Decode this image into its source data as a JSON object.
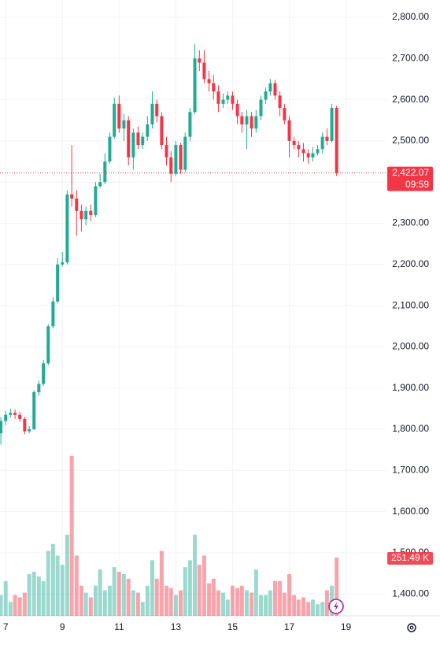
{
  "chart_data": {
    "type": "candlestick",
    "x": [
      6.83,
      7,
      7.17,
      7.33,
      7.5,
      7.67,
      7.83,
      8,
      8.17,
      8.33,
      8.5,
      8.67,
      8.83,
      9,
      9.17,
      9.33,
      9.5,
      9.67,
      9.83,
      10,
      10.17,
      10.33,
      10.5,
      10.67,
      10.83,
      11,
      11.17,
      11.33,
      11.5,
      11.67,
      11.83,
      12,
      12.17,
      12.33,
      12.5,
      12.67,
      12.83,
      13,
      13.17,
      13.33,
      13.5,
      13.67,
      13.83,
      14,
      14.17,
      14.33,
      14.5,
      14.67,
      14.83,
      15,
      15.17,
      15.33,
      15.5,
      15.67,
      15.83,
      16,
      16.17,
      16.33,
      16.5,
      16.67,
      16.83,
      17,
      17.17,
      17.33,
      17.5,
      17.67,
      17.83,
      18,
      18.17,
      18.33,
      18.5,
      18.67
    ],
    "open": [
      1790,
      1820,
      1835,
      1840,
      1835,
      1825,
      1795,
      1800,
      1890,
      1910,
      1960,
      2050,
      2110,
      2200,
      2205,
      2370,
      2360,
      2330,
      2310,
      2330,
      2320,
      2390,
      2400,
      2450,
      2510,
      2590,
      2530,
      2550,
      2460,
      2520,
      2490,
      2510,
      2540,
      2590,
      2560,
      2490,
      2460,
      2420,
      2490,
      2430,
      2510,
      2570,
      2700,
      2690,
      2650,
      2640,
      2620,
      2590,
      2600,
      2610,
      2590,
      2560,
      2540,
      2560,
      2530,
      2560,
      2600,
      2620,
      2640,
      2610,
      2580,
      2550,
      2500,
      2490,
      2480,
      2470,
      2460,
      2470,
      2480,
      2510,
      2500,
      2580
    ],
    "high": [
      1830,
      1845,
      1850,
      1848,
      1842,
      1830,
      1808,
      1895,
      1918,
      1968,
      2055,
      2120,
      2215,
      2230,
      2380,
      2490,
      2380,
      2345,
      2340,
      2345,
      2400,
      2420,
      2470,
      2520,
      2605,
      2610,
      2565,
      2560,
      2530,
      2535,
      2520,
      2560,
      2620,
      2600,
      2570,
      2510,
      2475,
      2500,
      2495,
      2520,
      2580,
      2735,
      2720,
      2720,
      2670,
      2660,
      2635,
      2615,
      2620,
      2620,
      2600,
      2570,
      2575,
      2570,
      2575,
      2610,
      2630,
      2650,
      2648,
      2620,
      2590,
      2560,
      2510,
      2500,
      2495,
      2480,
      2485,
      2490,
      2520,
      2530,
      2590,
      2585
    ],
    "low": [
      1763,
      1810,
      1828,
      1825,
      1818,
      1788,
      1790,
      1798,
      1882,
      1905,
      1955,
      2045,
      2105,
      2195,
      2200,
      2340,
      2270,
      2280,
      2295,
      2305,
      2315,
      2385,
      2395,
      2445,
      2505,
      2520,
      2500,
      2440,
      2430,
      2480,
      2480,
      2500,
      2530,
      2545,
      2480,
      2440,
      2400,
      2415,
      2420,
      2425,
      2500,
      2565,
      2670,
      2640,
      2620,
      2600,
      2570,
      2580,
      2590,
      2575,
      2540,
      2520,
      2480,
      2510,
      2520,
      2550,
      2590,
      2610,
      2600,
      2560,
      2540,
      2460,
      2480,
      2460,
      2450,
      2445,
      2450,
      2465,
      2470,
      2490,
      2495,
      2415
    ],
    "close": [
      1820,
      1835,
      1840,
      1835,
      1825,
      1795,
      1800,
      1890,
      1910,
      1960,
      2050,
      2110,
      2200,
      2205,
      2370,
      2360,
      2330,
      2310,
      2330,
      2320,
      2390,
      2400,
      2450,
      2510,
      2590,
      2530,
      2550,
      2460,
      2520,
      2490,
      2510,
      2540,
      2590,
      2560,
      2490,
      2460,
      2420,
      2490,
      2430,
      2510,
      2570,
      2700,
      2690,
      2650,
      2640,
      2620,
      2590,
      2600,
      2610,
      2590,
      2560,
      2540,
      2560,
      2530,
      2560,
      2600,
      2620,
      2640,
      2610,
      2580,
      2550,
      2500,
      2490,
      2480,
      2470,
      2460,
      2470,
      2480,
      2510,
      2500,
      2580,
      2422.07
    ],
    "up_color": "#22ab94",
    "down_color": "#f23645",
    "volume": {
      "values": [
        90,
        150,
        60,
        90,
        80,
        100,
        180,
        190,
        170,
        150,
        280,
        310,
        260,
        220,
        350,
        690,
        260,
        130,
        100,
        80,
        130,
        200,
        110,
        130,
        210,
        190,
        180,
        160,
        110,
        100,
        60,
        130,
        240,
        160,
        280,
        130,
        120,
        90,
        110,
        210,
        240,
        350,
        220,
        260,
        140,
        160,
        110,
        100,
        70,
        130,
        120,
        130,
        110,
        100,
        200,
        90,
        90,
        110,
        150,
        150,
        100,
        180,
        90,
        70,
        80,
        60,
        70,
        50,
        60,
        110,
        130,
        251.49
      ],
      "value_labels": [
        null,
        null,
        null,
        null,
        null,
        null,
        null,
        null,
        null,
        null,
        null,
        null,
        null,
        null,
        null,
        null,
        null,
        null,
        null,
        null,
        null,
        null,
        null,
        null,
        null,
        null,
        null,
        null,
        null,
        null,
        null,
        null,
        null,
        null,
        null,
        null,
        null,
        null,
        null,
        null,
        null,
        null,
        null,
        null,
        null,
        null,
        null,
        null,
        null,
        null,
        null,
        null,
        null,
        null,
        null,
        null,
        null,
        null,
        null,
        null,
        null,
        null,
        null,
        null,
        null,
        null,
        null,
        null,
        null,
        null,
        null,
        "251.49 K"
      ],
      "ylim": [
        0,
        754
      ]
    },
    "last_price": {
      "value": 2422.07,
      "label": "2,422.07"
    },
    "countdown": "09:59",
    "xlim": [
      6.8,
      20.4
    ],
    "xticks": [
      7,
      9,
      11,
      13,
      15,
      17,
      19
    ],
    "ylim": [
      1347,
      2842
    ],
    "yticks": [
      {
        "value": 1400,
        "label": "1,400.00"
      },
      {
        "value": 1500,
        "label": "1,500.00"
      },
      {
        "value": 1600,
        "label": "1,600.00"
      },
      {
        "value": 1700,
        "label": "1,700.00"
      },
      {
        "value": 1800,
        "label": "1,800.00"
      },
      {
        "value": 1900,
        "label": "1,900.00"
      },
      {
        "value": 2000,
        "label": "2,000.00"
      },
      {
        "value": 2100,
        "label": "2,100.00"
      },
      {
        "value": 2200,
        "label": "2,200.00"
      },
      {
        "value": 2300,
        "label": "2,300.00"
      },
      {
        "value": 2400,
        "label": "2,400.00"
      },
      {
        "value": 2500,
        "label": "2,500.00"
      },
      {
        "value": 2600,
        "label": "2,600.00"
      },
      {
        "value": 2700,
        "label": "2,700.00"
      },
      {
        "value": 2800,
        "label": "2,800.00"
      }
    ],
    "grid": true
  }
}
